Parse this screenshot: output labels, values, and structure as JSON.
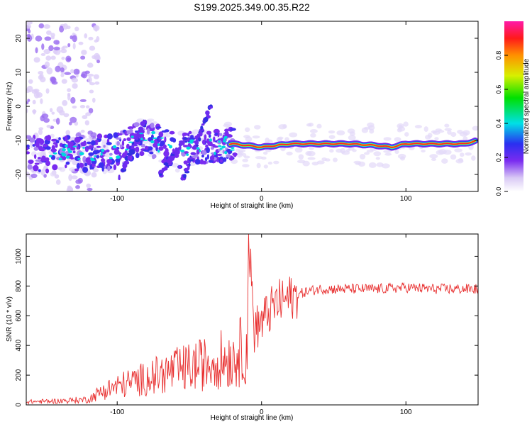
{
  "chart_data": [
    {
      "type": "heatmap",
      "title": "S199.2025.349.00.35.R22",
      "xlabel": "Height of straight line (km)",
      "ylabel": "Frequency (Hz)",
      "xlim": [
        -163,
        150
      ],
      "ylim": [
        -25,
        25
      ],
      "xticks": [
        -100,
        0,
        100
      ],
      "yticks": [
        -20,
        -10,
        0,
        10,
        20
      ],
      "xtick_labels": [
        "-100",
        "0",
        "100"
      ],
      "ytick_labels": [
        "-20",
        "-10",
        "0",
        "10",
        "20"
      ],
      "colorbar": {
        "label": "Normalized spectral amplitude",
        "range": [
          0,
          1
        ],
        "ticks": [
          0.0,
          0.2,
          0.4,
          0.6,
          0.8
        ],
        "tick_labels": [
          "0.0",
          "0.2",
          "0.4",
          "0.6",
          "0.8"
        ]
      },
      "ridge": {
        "x": [
          -160,
          -140,
          -120,
          -100,
          -80,
          -60,
          -40,
          -20,
          0,
          20,
          40,
          60,
          80,
          90,
          100,
          120,
          140,
          150
        ],
        "freq_hz": [
          -14,
          -14,
          -14,
          -13,
          -9,
          -13,
          -12,
          -11,
          -12,
          -11,
          -11,
          -11,
          -11.5,
          -12,
          -11,
          -11,
          -11,
          -10
        ]
      }
    },
    {
      "type": "line",
      "xlabel": "Height of straight line (km)",
      "ylabel": "SNR (10 * v/v)",
      "xlim": [
        -163,
        150
      ],
      "ylim": [
        0,
        1150
      ],
      "xticks": [
        -100,
        0,
        100
      ],
      "yticks": [
        0,
        200,
        400,
        600,
        800,
        1000
      ],
      "xtick_labels": [
        "-100",
        "0",
        "100"
      ],
      "ytick_labels": [
        "0",
        "200",
        "400",
        "600",
        "800",
        "1000"
      ],
      "series": [
        {
          "name": "SNR",
          "color": "#e83030",
          "x": [
            -163,
            -140,
            -120,
            -110,
            -100,
            -80,
            -60,
            -40,
            -30,
            -20,
            -12,
            -10,
            -9,
            -5,
            0,
            5,
            10,
            20,
            30,
            40,
            60,
            80,
            100,
            120,
            150
          ],
          "y": [
            20,
            25,
            35,
            90,
            120,
            170,
            220,
            260,
            290,
            300,
            360,
            380,
            1150,
            500,
            560,
            620,
            680,
            720,
            760,
            780,
            780,
            780,
            790,
            780,
            780
          ]
        }
      ]
    }
  ]
}
